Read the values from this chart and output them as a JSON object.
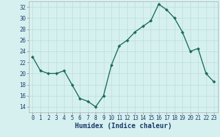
{
  "x": [
    0,
    1,
    2,
    3,
    4,
    5,
    6,
    7,
    8,
    9,
    10,
    11,
    12,
    13,
    14,
    15,
    16,
    17,
    18,
    19,
    20,
    21,
    22,
    23
  ],
  "y": [
    23,
    20.5,
    20,
    20,
    20.5,
    18,
    15.5,
    15,
    14,
    16,
    21.5,
    25,
    26,
    27.5,
    28.5,
    29.5,
    32.5,
    31.5,
    30,
    27.5,
    24,
    24.5,
    20,
    18.5
  ],
  "line_color": "#1a6b5a",
  "marker": "D",
  "marker_size": 2.2,
  "bg_color": "#d6f0f0",
  "grid_color": "#b8dcdc",
  "xlabel": "Humidex (Indice chaleur)",
  "ylim": [
    13,
    33
  ],
  "yticks": [
    14,
    16,
    18,
    20,
    22,
    24,
    26,
    28,
    30,
    32
  ],
  "xticks": [
    0,
    1,
    2,
    3,
    4,
    5,
    6,
    7,
    8,
    9,
    10,
    11,
    12,
    13,
    14,
    15,
    16,
    17,
    18,
    19,
    20,
    21,
    22,
    23
  ],
  "tick_label_fontsize": 5.5,
  "xlabel_fontsize": 7.0,
  "line_width": 1.0
}
